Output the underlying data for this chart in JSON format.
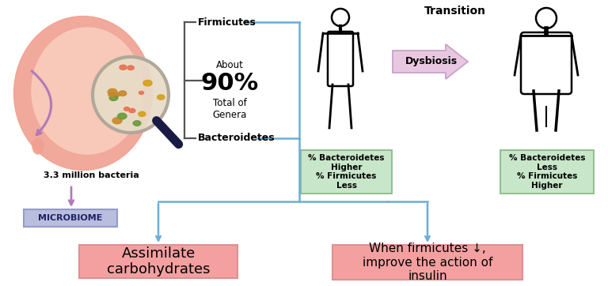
{
  "bg_color": "#ffffff",
  "firmicutes_label": "Firmicutes",
  "bacteroidetes_label": "Bacteroidetes",
  "about_text": "About",
  "percent_text": "90%",
  "total_text": "Total of\nGenera",
  "million_bacteria": "3.3 million bacteria",
  "microbiome_text": "MICROBIOME",
  "microbiome_box_color": "#b8bedd",
  "transition_text": "Transition",
  "dysbiosis_text": "Dysbiosis",
  "dysbiosis_arrow_color": "#e8c8e0",
  "normal_box_text": "% Bacteroidetes\nHigher\n% Firmicutes\nLess",
  "obese_box_text": "% Bacteroidetes\nLess\n% Firmicutes\nHigher",
  "green_box_color": "#c8e6c9",
  "assimilate_text": "Assimilate\ncarbohydrates",
  "insulin_text": "When firmicutes ↓,\nimprove the action of\ninsulin",
  "pink_box_color": "#f4a0a0",
  "line_color": "#6baed6",
  "purple_color": "#b07ab8",
  "bracket_color": "#555555",
  "intestine_outer": "#f0a090",
  "intestine_inner": "#f8c8b8",
  "mag_bg": "#e8dcc8",
  "bacteria_colors": [
    "#d4a017",
    "#c8882a",
    "#6a9a3a",
    "#e87050"
  ]
}
